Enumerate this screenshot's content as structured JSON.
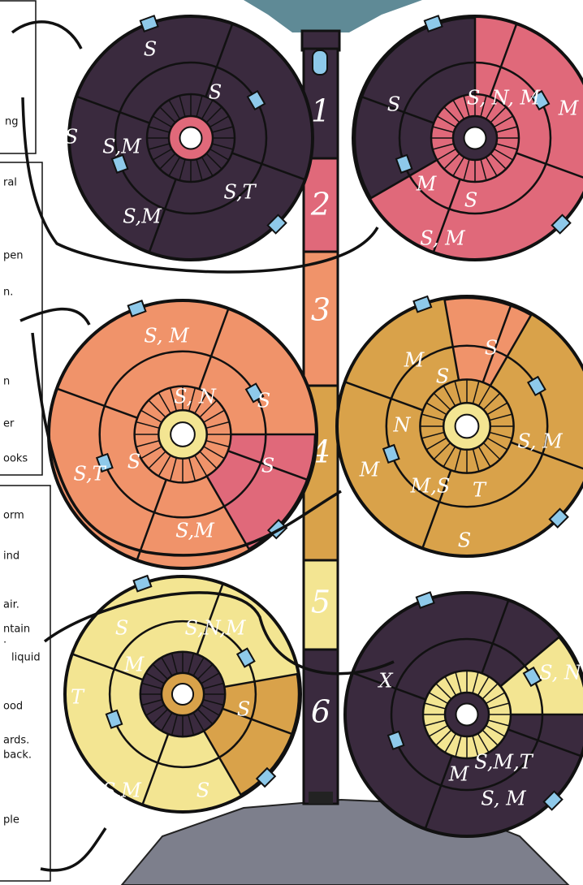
{
  "notes": [
    {
      "lines": [
        "ng"
      ]
    },
    {
      "lines": [
        "ral",
        "pen",
        "n.",
        "n",
        "er",
        "ooks"
      ]
    },
    {
      "lines": [
        "orm",
        "ind",
        "air.",
        "ntain",
        ".",
        "liquid",
        "ood",
        "ards.",
        "back.",
        "ple"
      ]
    }
  ],
  "tower": {
    "levels": [
      "1",
      "2",
      "3",
      "4",
      "5",
      "6"
    ]
  },
  "floors": [
    {
      "labels": [
        "S",
        "S",
        "S",
        "S,M",
        "S,T",
        "S,M"
      ]
    },
    {
      "labels": [
        "S",
        "S, N, M",
        "M",
        "M",
        "S",
        "S, M"
      ]
    },
    {
      "labels": [
        "S, M",
        "S, N",
        "S",
        "S",
        "S,T",
        "S",
        "S,M"
      ]
    },
    {
      "labels": [
        "S",
        "M",
        "S",
        "N",
        "S, M",
        "M",
        "M,S",
        "T",
        "S"
      ]
    },
    {
      "labels": [
        "S",
        "S,N,M",
        "M",
        "T",
        "S",
        "S,M",
        "S"
      ]
    },
    {
      "labels": [
        "X",
        "S, N",
        "M",
        "S,M,T",
        "S, M"
      ]
    }
  ]
}
